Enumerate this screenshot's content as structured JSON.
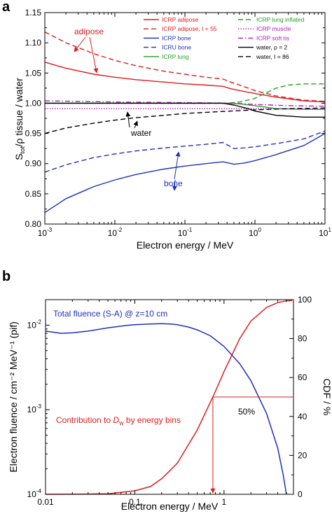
{
  "figure": {
    "panel_a_label": "a",
    "panel_b_label": "b"
  },
  "chart_data": [
    {
      "type": "line",
      "panel": "a",
      "xlabel": "Electron energy / MeV",
      "ylabel_main": "S",
      "ylabel_sub": "tot",
      "ylabel_rest": "/ρ  tissue / water",
      "xscale": "log",
      "xlim": [
        0.001,
        10
      ],
      "ylim": [
        0.8,
        1.15
      ],
      "x_ticks": [
        0.001,
        0.01,
        0.1,
        1,
        10
      ],
      "x_tick_labels": [
        [
          "10",
          "-3"
        ],
        [
          "10",
          "-2"
        ],
        [
          "10",
          "-1"
        ],
        [
          "10",
          "0"
        ],
        [
          "10",
          "1"
        ]
      ],
      "y_ticks": [
        0.8,
        0.85,
        0.9,
        0.95,
        1.0,
        1.05,
        1.1,
        1.15
      ],
      "y_tick_labels": [
        "0.80",
        "0.85",
        "0.90",
        "0.95",
        "1.00",
        "1.05",
        "1.10",
        "1.15"
      ],
      "grid": false,
      "legend_position": "top",
      "legend": [
        {
          "label": "ICRP adipose",
          "color": "#dd1c1c",
          "dash": "solid"
        },
        {
          "label": "ICRP adipose, I = 55",
          "color": "#dd1c1c",
          "dash": "dashed"
        },
        {
          "label": "ICRP bone",
          "color": "#1f2fbf",
          "dash": "solid"
        },
        {
          "label": "ICRU bone",
          "color": "#1f2fbf",
          "dash": "dashed"
        },
        {
          "label": "ICRP lung",
          "color": "#22a022",
          "dash": "solid"
        },
        {
          "label": "ICRP lung inflated",
          "color": "#22a022",
          "dash": "dashed"
        },
        {
          "label": "ICRP muscle",
          "color": "#b020c0",
          "dash": "dotted"
        },
        {
          "label": "ICRP soft tis",
          "color": "#b020c0",
          "dash": "dashdot"
        },
        {
          "label": "water, ρ = 2",
          "color": "#000000",
          "dash": "solid"
        },
        {
          "label": "water, I = 86",
          "color": "#000000",
          "dash": "dashed"
        }
      ],
      "series": [
        {
          "name": "ICRP adipose",
          "color": "#dd1c1c",
          "dash": "solid",
          "x": [
            0.001,
            0.002,
            0.005,
            0.01,
            0.02,
            0.05,
            0.1,
            0.2,
            0.35,
            0.45,
            0.6,
            1,
            2,
            5,
            10
          ],
          "y": [
            1.068,
            1.058,
            1.048,
            1.043,
            1.039,
            1.035,
            1.032,
            1.03,
            1.028,
            1.024,
            1.021,
            1.016,
            1.01,
            1.004,
            1.002
          ]
        },
        {
          "name": "ICRP adipose, I = 55",
          "color": "#dd1c1c",
          "dash": "dashed",
          "x": [
            0.001,
            0.002,
            0.005,
            0.01,
            0.02,
            0.05,
            0.1,
            0.2,
            0.35,
            0.45,
            0.6,
            1,
            2,
            5,
            10
          ],
          "y": [
            1.118,
            1.1,
            1.082,
            1.071,
            1.062,
            1.053,
            1.048,
            1.043,
            1.04,
            1.035,
            1.03,
            1.021,
            1.012,
            1.005,
            1.003
          ]
        },
        {
          "name": "ICRP bone",
          "color": "#1f2fbf",
          "dash": "solid",
          "x": [
            0.001,
            0.002,
            0.005,
            0.01,
            0.02,
            0.05,
            0.1,
            0.2,
            0.35,
            0.5,
            0.7,
            1,
            2,
            5,
            10
          ],
          "y": [
            0.819,
            0.842,
            0.862,
            0.873,
            0.882,
            0.891,
            0.896,
            0.9,
            0.903,
            0.899,
            0.901,
            0.905,
            0.915,
            0.93,
            0.95
          ]
        },
        {
          "name": "ICRU bone",
          "color": "#1f2fbf",
          "dash": "dashed",
          "x": [
            0.001,
            0.002,
            0.005,
            0.01,
            0.02,
            0.05,
            0.1,
            0.2,
            0.35,
            0.5,
            0.7,
            1,
            2,
            5,
            10
          ],
          "y": [
            0.886,
            0.898,
            0.91,
            0.916,
            0.921,
            0.926,
            0.929,
            0.932,
            0.935,
            0.925,
            0.926,
            0.928,
            0.933,
            0.941,
            0.954
          ]
        },
        {
          "name": "ICRP lung",
          "color": "#22a022",
          "dash": "solid",
          "x": [
            0.001,
            0.01,
            0.1,
            0.4,
            0.6,
            1,
            2,
            5,
            10
          ],
          "y": [
            1.0,
            1.0,
            1.0,
            1.0,
            0.999,
            0.996,
            0.991,
            0.99,
            0.99
          ]
        },
        {
          "name": "ICRP lung inflated",
          "color": "#22a022",
          "dash": "dashed",
          "x": [
            0.001,
            0.01,
            0.1,
            0.4,
            0.6,
            1,
            1.5,
            2,
            3,
            5,
            10
          ],
          "y": [
            1.0,
            1.0,
            1.0,
            1.0,
            1.002,
            1.008,
            1.018,
            1.025,
            1.03,
            1.032,
            1.032
          ]
        },
        {
          "name": "ICRP muscle",
          "color": "#b020c0",
          "dash": "dotted",
          "x": [
            0.001,
            0.01,
            0.1,
            1,
            10
          ],
          "y": [
            0.991,
            0.991,
            0.991,
            0.991,
            0.99
          ]
        },
        {
          "name": "ICRP soft tis",
          "color": "#b020c0",
          "dash": "dashdot",
          "x": [
            0.001,
            0.01,
            0.1,
            0.5,
            1,
            3,
            10
          ],
          "y": [
            1.004,
            1.002,
            1.001,
            1.0,
            0.998,
            0.996,
            0.995
          ]
        },
        {
          "name": "water, ρ = 2",
          "color": "#000000",
          "dash": "solid",
          "x": [
            0.001,
            0.01,
            0.1,
            0.35,
            0.5,
            0.8,
            1,
            2,
            5,
            10
          ],
          "y": [
            1.0,
            1.0,
            1.0,
            1.0,
            0.997,
            0.991,
            0.987,
            0.98,
            0.977,
            0.977
          ]
        },
        {
          "name": "water, I = 86",
          "color": "#000000",
          "dash": "dashed",
          "x": [
            0.001,
            0.002,
            0.005,
            0.01,
            0.02,
            0.05,
            0.1,
            0.3,
            1,
            3,
            10
          ],
          "y": [
            0.95,
            0.959,
            0.967,
            0.972,
            0.976,
            0.98,
            0.983,
            0.986,
            0.989,
            0.991,
            0.992
          ]
        }
      ],
      "annotations": [
        {
          "text": "adipose",
          "color": "#dd1c1c"
        },
        {
          "text": "water",
          "color": "#000000"
        },
        {
          "text": "bone",
          "color": "#1f2fbf"
        }
      ]
    },
    {
      "type": "line",
      "panel": "b",
      "xlabel": "Electron energy / MeV",
      "ylabel_left": "Electron fluence / cm⁻² MeV⁻¹ (pif)",
      "ylabel_right": "CDF / %",
      "xscale": "log",
      "xlim": [
        0.01,
        6
      ],
      "ylim_left": [
        0.0001,
        0.02
      ],
      "ylim_left_scale": "log",
      "ylim_right": [
        0,
        100
      ],
      "x_ticks": [
        0.01,
        0.1,
        1
      ],
      "x_tick_labels": [
        "0.01",
        "0.1",
        "1"
      ],
      "y_left_ticks": [
        0.0001,
        0.001,
        0.01
      ],
      "y_left_tick_labels": [
        [
          "10",
          "-4"
        ],
        [
          "10",
          "-3"
        ],
        [
          "10",
          "-2"
        ]
      ],
      "y_right_ticks": [
        0,
        20,
        40,
        60,
        80,
        100
      ],
      "y_right_tick_labels": [
        "0",
        "20",
        "40",
        "60",
        "80",
        "100"
      ],
      "grid": false,
      "series": [
        {
          "name": "Total fluence (S-A) @ z=10 cm",
          "axis": "left",
          "color": "#1f2fbf",
          "x": [
            0.01,
            0.015,
            0.02,
            0.03,
            0.05,
            0.08,
            0.1,
            0.15,
            0.2,
            0.25,
            0.3,
            0.4,
            0.5,
            0.7,
            1,
            1.5,
            2,
            3,
            4,
            4.6,
            5.0
          ],
          "y": [
            0.0085,
            0.008,
            0.0081,
            0.0085,
            0.0093,
            0.0099,
            0.0101,
            0.0103,
            0.0104,
            0.0103,
            0.0101,
            0.0095,
            0.0088,
            0.0075,
            0.0056,
            0.0035,
            0.0022,
            0.0009,
            0.00035,
            0.00017,
            0.0001
          ]
        },
        {
          "name": "Contribution to Dw by energy bins",
          "axis": "right",
          "color": "#dd1c1c",
          "x": [
            0.01,
            0.03,
            0.05,
            0.1,
            0.15,
            0.2,
            0.3,
            0.5,
            0.75,
            1,
            1.5,
            2,
            3,
            4,
            5,
            5.8
          ],
          "y": [
            0,
            0.1,
            0.3,
            1.8,
            4,
            8,
            16,
            33,
            50,
            63,
            80,
            89,
            96,
            98.5,
            99.4,
            99.6
          ]
        }
      ],
      "annotations": [
        {
          "text": "Total fluence (S-A) @ z=10 cm",
          "color": "#1f2fbf"
        },
        {
          "text": "Contribution to ",
          "text_italic": "D",
          "text_sub": "w",
          "text_after": " by energy bins",
          "color": "#dd1c1c"
        },
        {
          "text": "50%",
          "color": "#000000"
        }
      ],
      "marker_50": {
        "x": 0.75,
        "cdf": 50
      }
    }
  ]
}
